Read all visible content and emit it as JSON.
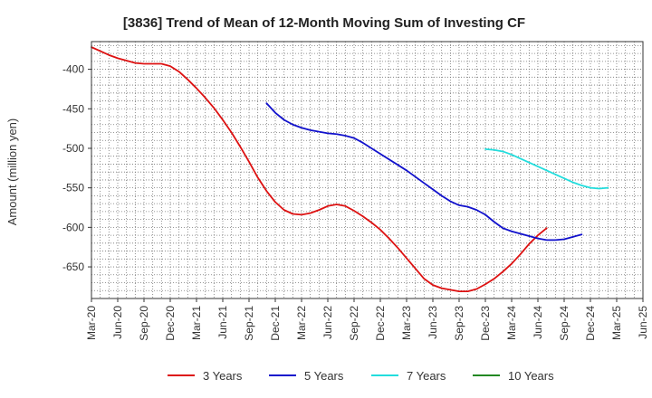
{
  "chart_data": {
    "type": "line",
    "title": "[3836]  Trend of Mean of 12-Month Moving Sum of Investing CF",
    "xlabel": "",
    "ylabel": "Amount (million yen)",
    "ylim": [
      -690,
      -365
    ],
    "y_ticks": [
      -400,
      -450,
      -500,
      -550,
      -600,
      -650
    ],
    "x_ticks": [
      "Mar-20",
      "Jun-20",
      "Sep-20",
      "Dec-20",
      "Mar-21",
      "Jun-21",
      "Sep-21",
      "Dec-21",
      "Mar-22",
      "Jun-22",
      "Sep-22",
      "Dec-22",
      "Mar-23",
      "Jun-23",
      "Sep-23",
      "Dec-23",
      "Mar-24",
      "Jun-24",
      "Sep-24",
      "Dec-24",
      "Mar-25",
      "Jun-25"
    ],
    "grid": true,
    "legend_position": "bottom",
    "series": [
      {
        "name": "3 Years",
        "color": "#dd1111",
        "start": "Mar-20",
        "values": [
          -372,
          -377,
          -382,
          -386,
          -389,
          -392,
          -393,
          -393,
          -393,
          -396,
          -403,
          -413,
          -424,
          -436,
          -449,
          -464,
          -480,
          -498,
          -517,
          -537,
          -554,
          -568,
          -578,
          -583,
          -584,
          -582,
          -578,
          -573,
          -571,
          -573,
          -579,
          -586,
          -594,
          -603,
          -614,
          -626,
          -639,
          -652,
          -665,
          -673,
          -677,
          -679,
          -681,
          -681,
          -678,
          -672,
          -665,
          -656,
          -646,
          -634,
          -621,
          -610,
          -601
        ]
      },
      {
        "name": "5 Years",
        "color": "#1111cc",
        "start": "Nov-21",
        "values": [
          -443,
          -455,
          -464,
          -470,
          -474,
          -477,
          -479,
          -481,
          -482,
          -484,
          -487,
          -493,
          -500,
          -507,
          -514,
          -521,
          -528,
          -536,
          -544,
          -552,
          -560,
          -567,
          -572,
          -574,
          -578,
          -584,
          -593,
          -601,
          -605,
          -608,
          -611,
          -614,
          -616,
          -616,
          -615,
          -612,
          -609
        ]
      },
      {
        "name": "7 Years",
        "color": "#22dddd",
        "start": "Dec-23",
        "values": [
          -501,
          -502,
          -504,
          -508,
          -513,
          -518,
          -523,
          -528,
          -533,
          -538,
          -543,
          -547,
          -550,
          -551,
          -550
        ]
      },
      {
        "name": "10 Years",
        "color": "#228822",
        "start": "",
        "values": []
      }
    ]
  }
}
